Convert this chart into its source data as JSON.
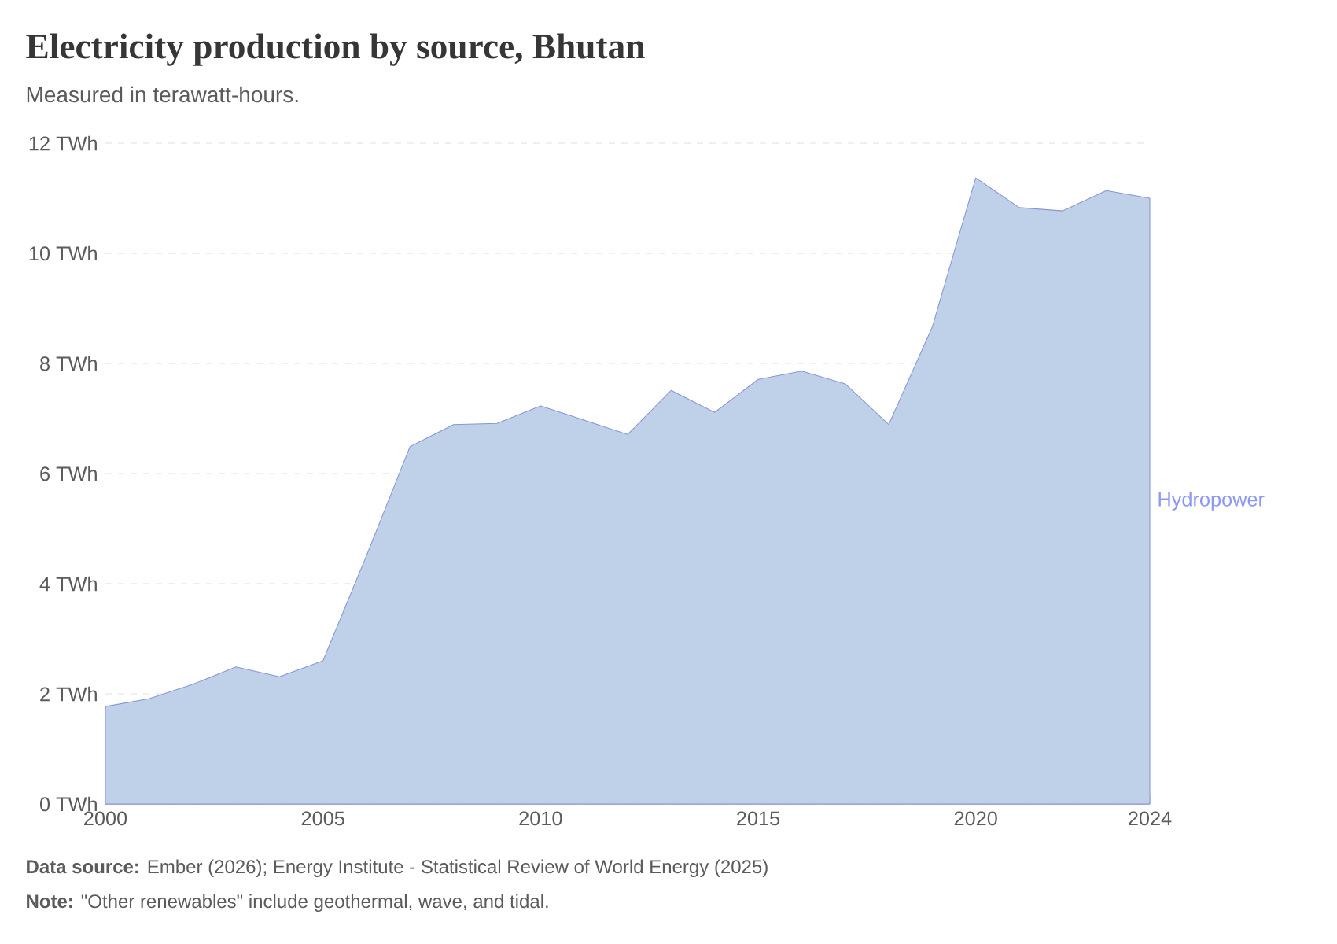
{
  "chart_data": {
    "type": "area",
    "title": "Electricity production by source, Bhutan",
    "subtitle": "Measured in terawatt-hours.",
    "x": [
      2000,
      2001,
      2002,
      2003,
      2004,
      2005,
      2006,
      2007,
      2008,
      2009,
      2010,
      2011,
      2012,
      2013,
      2014,
      2015,
      2016,
      2017,
      2018,
      2019,
      2020,
      2021,
      2022,
      2023,
      2024
    ],
    "series": [
      {
        "name": "Hydropower",
        "color": "#bed1e8",
        "values": [
          1.77,
          1.91,
          2.17,
          2.49,
          2.31,
          2.6,
          4.51,
          6.49,
          6.89,
          6.91,
          7.23,
          6.97,
          6.71,
          7.51,
          7.11,
          7.71,
          7.86,
          7.63,
          6.89,
          8.66,
          11.37,
          10.83,
          10.77,
          11.14,
          11.0
        ]
      }
    ],
    "xlim": [
      2000,
      2024
    ],
    "ylim": [
      0,
      12
    ],
    "xticks": [
      2000,
      2005,
      2010,
      2015,
      2020,
      2024
    ],
    "yticks": [
      {
        "value": 0,
        "label": "0 TWh"
      },
      {
        "value": 2,
        "label": "2 TWh"
      },
      {
        "value": 4,
        "label": "4 TWh"
      },
      {
        "value": 6,
        "label": "6 TWh"
      },
      {
        "value": 8,
        "label": "8 TWh"
      },
      {
        "value": 10,
        "label": "10 TWh"
      },
      {
        "value": 12,
        "label": "12 TWh"
      }
    ],
    "grid": "y",
    "annotations": [
      "**Data source:** Ember (2026); Energy Institute - Statistical Review of World Energy (2025)",
      "**Note:** \"Other renewables\" include geothermal, wave, and tidal."
    ]
  }
}
